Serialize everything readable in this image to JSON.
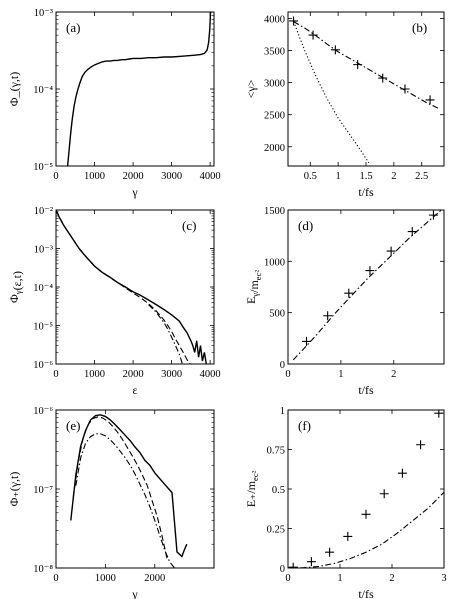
{
  "chart_data": [
    {
      "type": "line",
      "panel_label": "(a)",
      "xlabel": "γ",
      "ylabel": "Φ_(γ,t)",
      "xlim": [
        0,
        4100
      ],
      "ylim": [
        1e-05,
        0.001
      ],
      "yscale": "log",
      "xticks": [
        0,
        1000,
        2000,
        3000,
        4000
      ],
      "xtick_labels": [
        "0",
        "1000",
        "2000",
        "3000",
        "4000"
      ],
      "yticks": [
        1e-05,
        0.0001,
        0.001
      ],
      "ytick_labels": [
        "10⁻⁵",
        "10⁻⁴",
        "10⁻³"
      ],
      "series": [
        {
          "style": "solid",
          "x": [
            300,
            340,
            380,
            420,
            470,
            520,
            570,
            620,
            680,
            750,
            830,
            920,
            1000,
            1100,
            1200,
            1300,
            1400,
            1500,
            1600,
            1700,
            1800,
            1900,
            2000,
            2200,
            2400,
            2600,
            2800,
            3000,
            3200,
            3400,
            3600,
            3750,
            3850,
            3920,
            3960,
            3990,
            4010
          ],
          "y": [
            1e-05,
            1.6e-05,
            2.6e-05,
            4e-05,
            6e-05,
            8e-05,
            0.0001,
            0.00012,
            0.000145,
            0.000165,
            0.00018,
            0.000195,
            0.000205,
            0.000215,
            0.000225,
            0.00023,
            0.00023,
            0.000235,
            0.000235,
            0.00024,
            0.00024,
            0.000245,
            0.00025,
            0.00025,
            0.000255,
            0.000255,
            0.00026,
            0.00026,
            0.000265,
            0.00027,
            0.000275,
            0.00028,
            0.00029,
            0.00032,
            0.0004,
            0.0006,
            0.001
          ]
        }
      ]
    },
    {
      "type": "line",
      "panel_label": "(b)",
      "xlabel": "t/fs",
      "ylabel": "<γ>",
      "xlim": [
        0.1,
        2.9
      ],
      "ylim": [
        1700,
        4100
      ],
      "xticks": [
        0.5,
        1,
        1.5,
        2,
        2.5
      ],
      "xtick_labels": [
        "0.5",
        "1",
        "1.5",
        "2",
        "2.5"
      ],
      "yticks": [
        2000,
        2500,
        3000,
        3500,
        4000
      ],
      "ytick_labels": [
        "2000",
        "2500",
        "3000",
        "3500",
        "4000"
      ],
      "series": [
        {
          "style": "dashdot",
          "x": [
            0.2,
            0.4,
            0.6,
            0.8,
            1.0,
            1.2,
            1.4,
            1.6,
            1.8,
            2.0,
            2.2,
            2.4,
            2.6,
            2.8
          ],
          "y": [
            3950,
            3850,
            3730,
            3600,
            3480,
            3380,
            3280,
            3180,
            3080,
            2980,
            2880,
            2780,
            2680,
            2600
          ]
        },
        {
          "style": "markers",
          "x": [
            0.2,
            0.55,
            0.95,
            1.35,
            1.8,
            2.2,
            2.65
          ],
          "y": [
            3960,
            3740,
            3510,
            3280,
            3070,
            2900,
            2730
          ]
        },
        {
          "style": "dotted",
          "x": [
            0.2,
            0.4,
            0.6,
            0.8,
            1.0,
            1.2,
            1.4,
            1.55
          ],
          "y": [
            3950,
            3500,
            3100,
            2750,
            2450,
            2200,
            1950,
            1750
          ]
        }
      ]
    },
    {
      "type": "line",
      "panel_label": "(c)",
      "xlabel": "ε",
      "ylabel": "Φ_γ(ε,t)",
      "xlim": [
        0,
        4100
      ],
      "ylim": [
        1e-06,
        0.01
      ],
      "yscale": "log",
      "xticks": [
        0,
        1000,
        2000,
        3000,
        4000
      ],
      "xtick_labels": [
        "0",
        "1000",
        "2000",
        "3000",
        "4000"
      ],
      "yticks": [
        1e-06,
        1e-05,
        0.0001,
        0.001,
        0.01
      ],
      "ytick_labels": [
        "10⁻⁶",
        "10⁻⁵",
        "10⁻⁴",
        "10⁻³",
        "10⁻²"
      ],
      "series": [
        {
          "style": "solid",
          "x": [
            0,
            100,
            200,
            300,
            400,
            500,
            600,
            700,
            800,
            900,
            1000,
            1200,
            1400,
            1600,
            1800,
            2000,
            2200,
            2400,
            2600,
            2800,
            3000,
            3200,
            3300,
            3400,
            3500,
            3550,
            3600,
            3650,
            3700,
            3750,
            3800,
            3850,
            3900
          ],
          "y": [
            0.01,
            0.006,
            0.004,
            0.0028,
            0.002,
            0.0014,
            0.001,
            0.00075,
            0.00058,
            0.00045,
            0.00035,
            0.00024,
            0.00018,
            0.00013,
            0.0001,
            7.5e-05,
            6e-05,
            4.6e-05,
            3.5e-05,
            2.6e-05,
            1.9e-05,
            1.3e-05,
            9e-06,
            6.5e-06,
            4e-06,
            3e-06,
            2e-06,
            4e-06,
            1.5e-06,
            3e-06,
            1.2e-06,
            2e-06,
            1e-06
          ]
        },
        {
          "style": "dashed",
          "x": [
            0,
            200,
            400,
            600,
            800,
            1000,
            1200,
            1400,
            1600,
            1800,
            2000,
            2200,
            2400,
            2600,
            2800,
            2900,
            3000,
            3100,
            3200,
            3300,
            3400,
            3480
          ],
          "y": [
            0.01,
            0.004,
            0.002,
            0.001,
            0.00058,
            0.00035,
            0.00024,
            0.000175,
            0.00013,
            9.5e-05,
            7e-05,
            5.2e-05,
            3.7e-05,
            2.4e-05,
            1.4e-05,
            1e-05,
            7e-06,
            4.5e-06,
            3e-06,
            2e-06,
            1.3e-06,
            1e-06
          ]
        },
        {
          "style": "dashdot",
          "x": [
            2400,
            2600,
            2800,
            2900,
            3000,
            3100,
            3200,
            3280
          ],
          "y": [
            3.5e-05,
            2.2e-05,
            1.2e-05,
            8e-06,
            5e-06,
            3e-06,
            1.8e-06,
            1e-06
          ]
        }
      ]
    },
    {
      "type": "line",
      "panel_label": "(d)",
      "xlabel": "t/fs",
      "ylabel": "E_γ/m_ec²",
      "xlim": [
        0,
        2.95
      ],
      "ylim": [
        0,
        1500
      ],
      "xticks": [
        0,
        1,
        2
      ],
      "xtick_labels": [
        "0",
        "1",
        "2"
      ],
      "yticks": [
        0,
        500,
        1000,
        1500
      ],
      "ytick_labels": [
        "0",
        "500",
        "1000",
        "1500"
      ],
      "series": [
        {
          "style": "dashdot",
          "x": [
            0.1,
            0.3,
            0.5,
            0.7,
            0.9,
            1.1,
            1.3,
            1.5,
            1.7,
            1.9,
            2.1,
            2.3,
            2.5,
            2.7,
            2.9
          ],
          "y": [
            40,
            150,
            260,
            380,
            500,
            610,
            720,
            830,
            930,
            1030,
            1130,
            1230,
            1320,
            1410,
            1500
          ]
        },
        {
          "style": "markers",
          "x": [
            0.35,
            0.75,
            1.15,
            1.55,
            1.95,
            2.35,
            2.75
          ],
          "y": [
            220,
            470,
            690,
            910,
            1100,
            1290,
            1450
          ]
        }
      ]
    },
    {
      "type": "line",
      "panel_label": "(e)",
      "xlabel": "γ",
      "ylabel": "Φ₊(γ,t)",
      "xlim": [
        0,
        3200
      ],
      "ylim": [
        1e-08,
        1e-06
      ],
      "yscale": "log",
      "xticks": [
        0,
        1000,
        2000
      ],
      "xtick_labels": [
        "0",
        "1000",
        "2000"
      ],
      "yticks": [
        1e-08,
        1e-07,
        1e-06
      ],
      "ytick_labels": [
        "10⁻⁸",
        "10⁻⁷",
        "10⁻⁶"
      ],
      "series": [
        {
          "style": "solid",
          "x": [
            300,
            400,
            500,
            600,
            700,
            800,
            900,
            1000,
            1100,
            1200,
            1300,
            1400,
            1500,
            1600,
            1700,
            1800,
            1900,
            2000,
            2200,
            2350,
            2450,
            2550,
            2600,
            2650
          ],
          "y": [
            4e-08,
            1.5e-07,
            3.5e-07,
            5.5e-07,
            7.5e-07,
            8.5e-07,
            8.7e-07,
            8.3e-07,
            7.5e-07,
            6.5e-07,
            5.6e-07,
            4.8e-07,
            4.1e-07,
            3.4e-07,
            2.9e-07,
            2.3e-07,
            2e-07,
            1.6e-07,
            1.15e-07,
            9e-08,
            1.6e-08,
            1.4e-08,
            1.7e-08,
            2e-08
          ]
        },
        {
          "style": "dashed",
          "x": [
            350,
            450,
            550,
            650,
            750,
            850,
            950,
            1050,
            1150,
            1250,
            1350,
            1450,
            1550,
            1650,
            1750,
            1850,
            1950,
            2050,
            2150,
            2250
          ],
          "y": [
            8e-08,
            2.2e-07,
            4.5e-07,
            6.5e-07,
            7.8e-07,
            8.2e-07,
            7.9e-07,
            7.2e-07,
            6.2e-07,
            5.2e-07,
            4.2e-07,
            3.3e-07,
            2.6e-07,
            2e-07,
            1.5e-07,
            1.1e-07,
            7e-08,
            4.5e-08,
            2.5e-08,
            1.3e-08
          ]
        },
        {
          "style": "dashdot",
          "x": [
            400,
            500,
            600,
            700,
            800,
            900,
            1000,
            1100,
            1200,
            1300,
            1400,
            1500,
            1600,
            1700,
            1800,
            1900,
            2000,
            2100,
            2200,
            2300,
            2400
          ],
          "y": [
            1.1e-07,
            2.5e-07,
            3.8e-07,
            4.6e-07,
            5e-07,
            5e-07,
            4.7e-07,
            4.2e-07,
            3.6e-07,
            3e-07,
            2.5e-07,
            2e-07,
            1.55e-07,
            1.15e-07,
            8.5e-08,
            6e-08,
            4e-08,
            2.6e-08,
            1.7e-08,
            1.2e-08,
            1e-08
          ]
        }
      ]
    },
    {
      "type": "line",
      "panel_label": "(f)",
      "xlabel": "t/fs",
      "ylabel": "E₊/m_ec²",
      "xlim": [
        0,
        3
      ],
      "ylim": [
        0,
        1
      ],
      "xticks": [
        0,
        1,
        2,
        3
      ],
      "xtick_labels": [
        "0",
        "1",
        "2",
        "3"
      ],
      "yticks": [
        0,
        0.25,
        0.5,
        0.75,
        1
      ],
      "ytick_labels": [
        "0",
        "0.25",
        "0.5",
        "0.75",
        "1"
      ],
      "series": [
        {
          "style": "dashdot",
          "x": [
            0,
            0.3,
            0.6,
            0.9,
            1.2,
            1.5,
            1.8,
            2.1,
            2.4,
            2.7,
            3.0
          ],
          "y": [
            0,
            0.002,
            0.01,
            0.03,
            0.06,
            0.1,
            0.15,
            0.22,
            0.3,
            0.38,
            0.48
          ]
        },
        {
          "style": "markers",
          "x": [
            0.1,
            0.45,
            0.8,
            1.15,
            1.5,
            1.85,
            2.2,
            2.55,
            2.9
          ],
          "y": [
            0.005,
            0.04,
            0.1,
            0.2,
            0.34,
            0.47,
            0.6,
            0.78,
            0.98
          ]
        }
      ]
    }
  ]
}
